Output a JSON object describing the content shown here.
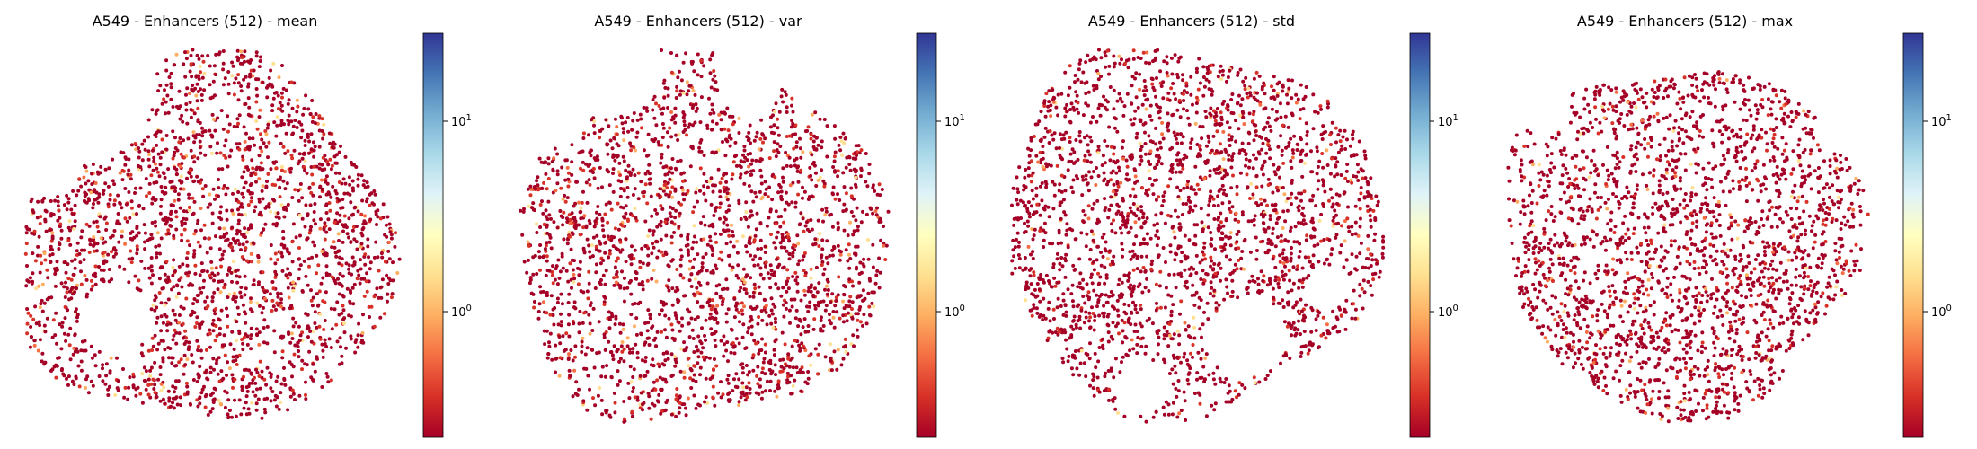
{
  "chart_data": [
    {
      "type": "scatter",
      "title": "A549 - Enhancers (512) - mean",
      "colorbar": {
        "scale": "log",
        "range": [
          0.25,
          35
        ],
        "ticks": [
          1,
          10
        ],
        "tick_labels": [
          "10^0",
          "10^1"
        ],
        "colormap": "RdYlBu"
      },
      "axes": "off",
      "point_color_value_typical": 0.3,
      "highlight_fraction": 0.09,
      "seed": 11
    },
    {
      "type": "scatter",
      "title": "A549 - Enhancers (512) - var",
      "colorbar": {
        "scale": "log",
        "range": [
          0.25,
          35
        ],
        "ticks": [
          1,
          10
        ],
        "tick_labels": [
          "10^0",
          "10^1"
        ],
        "colormap": "RdYlBu"
      },
      "axes": "off",
      "point_color_value_typical": 0.3,
      "highlight_fraction": 0.08,
      "seed": 23
    },
    {
      "type": "scatter",
      "title": "A549 - Enhancers (512) - std",
      "colorbar": {
        "scale": "log",
        "range": [
          0.25,
          35
        ],
        "ticks": [
          1,
          10
        ],
        "tick_labels": [
          "10^0",
          "10^1"
        ],
        "colormap": "RdYlBu"
      },
      "axes": "off",
      "point_color_value_typical": 0.3,
      "highlight_fraction": 0.06,
      "seed": 37
    },
    {
      "type": "scatter",
      "title": "A549 - Enhancers (512) - max",
      "colorbar": {
        "scale": "log",
        "range": [
          0.25,
          35
        ],
        "ticks": [
          1,
          10
        ],
        "tick_labels": [
          "10^0",
          "10^1"
        ],
        "colormap": "RdYlBu"
      },
      "axes": "off",
      "point_color_value_typical": 0.3,
      "highlight_fraction": 0.07,
      "seed": 53
    }
  ],
  "colors": {
    "low": "#a50026",
    "mid_low": "#d73027",
    "orange": "#f46d43",
    "light_orange": "#fdae61",
    "yellow": "#fee090",
    "pale": "#ffffbf",
    "light_blue": "#e0f3f8",
    "sky": "#abd9e9",
    "blue": "#74add1",
    "mid_blue": "#4575b4",
    "high": "#313695"
  }
}
